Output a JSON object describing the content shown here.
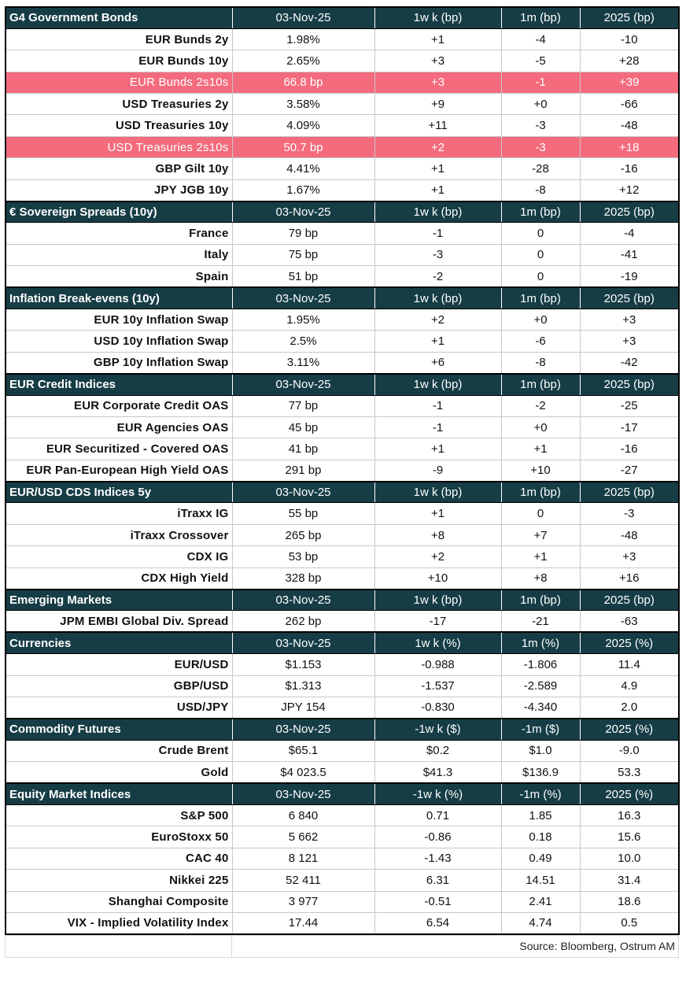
{
  "sections": [
    {
      "header": [
        "G4 Government Bonds",
        "03-Nov-25",
        "1w k (bp)",
        "1m (bp)",
        "2025 (bp)"
      ],
      "rows": [
        {
          "cells": [
            "EUR Bunds 2y",
            "1.98%",
            "+1",
            "-4",
            "-10"
          ]
        },
        {
          "cells": [
            "EUR Bunds 10y",
            "2.65%",
            "+3",
            "-5",
            "+28"
          ]
        },
        {
          "cells": [
            "EUR Bunds 2s10s",
            "66.8 bp",
            "+3",
            "-1",
            "+39"
          ],
          "highlight": true
        },
        {
          "cells": [
            "USD Treasuries 2y",
            "3.58%",
            "+9",
            "+0",
            "-66"
          ]
        },
        {
          "cells": [
            "USD Treasuries 10y",
            "4.09%",
            "+11",
            "-3",
            "-48"
          ]
        },
        {
          "cells": [
            "USD Treasuries 2s10s",
            "50.7 bp",
            "+2",
            "-3",
            "+18"
          ],
          "highlight": true
        },
        {
          "cells": [
            "GBP Gilt 10y",
            "4.41%",
            "+1",
            "-28",
            "-16"
          ]
        },
        {
          "cells": [
            "JPY JGB 10y",
            "1.67%",
            "+1",
            "-8",
            "+12"
          ]
        }
      ]
    },
    {
      "header": [
        "€ Sovereign Spreads (10y)",
        "03-Nov-25",
        "1w k (bp)",
        "1m (bp)",
        "2025 (bp)"
      ],
      "rows": [
        {
          "cells": [
            "France",
            "79 bp",
            "-1",
            "0",
            "-4"
          ]
        },
        {
          "cells": [
            "Italy",
            "75 bp",
            "-3",
            "0",
            "-41"
          ]
        },
        {
          "cells": [
            "Spain",
            "51 bp",
            "-2",
            "0",
            "-19"
          ]
        }
      ]
    },
    {
      "header": [
        "Inflation Break-evens (10y)",
        "03-Nov-25",
        "1w k (bp)",
        "1m (bp)",
        "2025 (bp)"
      ],
      "rows": [
        {
          "cells": [
            "EUR 10y Inflation Swap",
            "1.95%",
            "+2",
            "+0",
            "+3"
          ]
        },
        {
          "cells": [
            "USD 10y Inflation Swap",
            "2.5%",
            "+1",
            "-6",
            "+3"
          ]
        },
        {
          "cells": [
            "GBP 10y Inflation Swap",
            "3.11%",
            "+6",
            "-8",
            "-42"
          ]
        }
      ]
    },
    {
      "header": [
        "EUR Credit Indices",
        "03-Nov-25",
        "1w k (bp)",
        "1m (bp)",
        "2025 (bp)"
      ],
      "rows": [
        {
          "cells": [
            "EUR Corporate Credit OAS",
            "77 bp",
            "-1",
            "-2",
            "-25"
          ]
        },
        {
          "cells": [
            "EUR Agencies OAS",
            "45 bp",
            "-1",
            "+0",
            "-17"
          ]
        },
        {
          "cells": [
            "EUR Securitized - Covered OAS",
            "41 bp",
            "+1",
            "+1",
            "-16"
          ]
        },
        {
          "cells": [
            "EUR Pan-European High Yield OAS",
            "291 bp",
            "-9",
            "+10",
            "-27"
          ]
        }
      ]
    },
    {
      "header": [
        "EUR/USD CDS Indices 5y",
        "03-Nov-25",
        "1w k (bp)",
        "1m (bp)",
        "2025 (bp)"
      ],
      "rows": [
        {
          "cells": [
            "iTraxx IG",
            "55 bp",
            "+1",
            "0",
            "-3"
          ]
        },
        {
          "cells": [
            "iTraxx Crossover",
            "265 bp",
            "+8",
            "+7",
            "-48"
          ]
        },
        {
          "cells": [
            "CDX IG",
            "53 bp",
            "+2",
            "+1",
            "+3"
          ]
        },
        {
          "cells": [
            "CDX High Yield",
            "328 bp",
            "+10",
            "+8",
            "+16"
          ]
        }
      ]
    },
    {
      "header": [
        "Emerging Markets",
        "03-Nov-25",
        "1w k (bp)",
        "1m (bp)",
        "2025 (bp)"
      ],
      "rows": [
        {
          "cells": [
            "JPM EMBI Global Div. Spread",
            "262 bp",
            "-17",
            "-21",
            "-63"
          ]
        }
      ]
    },
    {
      "header": [
        "Currencies",
        "03-Nov-25",
        "1w k (%)",
        "1m (%)",
        "2025 (%)"
      ],
      "rows": [
        {
          "cells": [
            "EUR/USD",
            "$1.153",
            "-0.988",
            "-1.806",
            "11.4"
          ]
        },
        {
          "cells": [
            "GBP/USD",
            "$1.313",
            "-1.537",
            "-2.589",
            "4.9"
          ]
        },
        {
          "cells": [
            "USD/JPY",
            "JPY 154",
            "-0.830",
            "-4.340",
            "2.0"
          ]
        }
      ]
    },
    {
      "header": [
        "Commodity Futures",
        "03-Nov-25",
        "-1w k ($)",
        "-1m ($)",
        "2025 (%)"
      ],
      "rows": [
        {
          "cells": [
            "Crude Brent",
            "$65.1",
            "$0.2",
            "$1.0",
            "-9.0"
          ]
        },
        {
          "cells": [
            "Gold",
            "$4 023.5",
            "$41.3",
            "$136.9",
            "53.3"
          ]
        }
      ]
    },
    {
      "header": [
        "Equity Market Indices",
        "03-Nov-25",
        "-1w k (%)",
        "-1m (%)",
        "2025 (%)"
      ],
      "rows": [
        {
          "cells": [
            "S&P 500",
            "6 840",
            "0.71",
            "1.85",
            "16.3"
          ]
        },
        {
          "cells": [
            "EuroStoxx 50",
            "5 662",
            "-0.86",
            "0.18",
            "15.6"
          ]
        },
        {
          "cells": [
            "CAC 40",
            "8 121",
            "-1.43",
            "0.49",
            "10.0"
          ]
        },
        {
          "cells": [
            "Nikkei 225",
            "52 411",
            "6.31",
            "14.51",
            "31.4"
          ]
        },
        {
          "cells": [
            "Shanghai Composite",
            "3 977",
            "-0.51",
            "2.41",
            "18.6"
          ]
        },
        {
          "cells": [
            "VIX - Implied Volatility Index",
            "17.44",
            "6.54",
            "4.74",
            "0.5"
          ]
        }
      ]
    }
  ],
  "source": "Source: Bloomberg, Ostrum AM"
}
